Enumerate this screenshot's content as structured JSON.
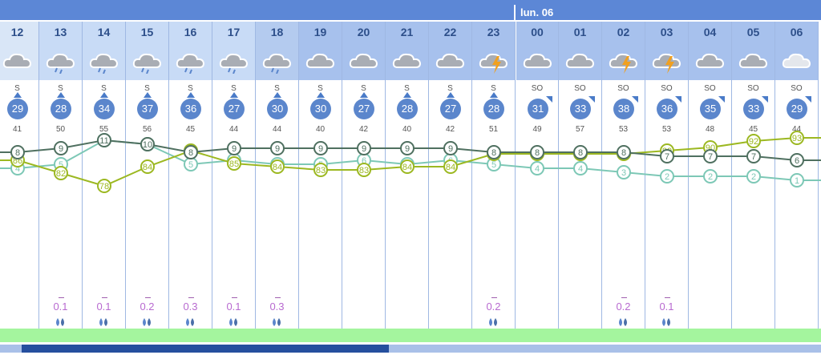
{
  "day_label": "lun. 06",
  "hours": [
    "12",
    "13",
    "14",
    "15",
    "16",
    "17",
    "18",
    "19",
    "20",
    "21",
    "22",
    "23",
    "00",
    "01",
    "02",
    "03",
    "04",
    "05",
    "06"
  ],
  "icons": [
    "cloud",
    "rain-cloud",
    "rain-cloud",
    "rain-cloud",
    "rain-cloud",
    "rain-cloud",
    "rain-cloud",
    "cloud",
    "cloud",
    "cloud",
    "cloud",
    "storm-cloud",
    "cloud",
    "cloud",
    "storm-cloud",
    "storm-cloud",
    "cloud",
    "cloud",
    "light-cloud"
  ],
  "wind_dir": [
    "S",
    "S",
    "S",
    "S",
    "S",
    "S",
    "S",
    "S",
    "S",
    "S",
    "S",
    "S",
    "SO",
    "SO",
    "SO",
    "SO",
    "SO",
    "SO",
    "SO"
  ],
  "wind_speed": [
    "29",
    "28",
    "34",
    "37",
    "36",
    "27",
    "30",
    "30",
    "27",
    "28",
    "27",
    "28",
    "31",
    "33",
    "38",
    "36",
    "35",
    "33",
    "29"
  ],
  "gusts": [
    "41",
    "50",
    "55",
    "56",
    "45",
    "44",
    "44",
    "40",
    "42",
    "40",
    "42",
    "51",
    "49",
    "57",
    "53",
    "53",
    "48",
    "45",
    "44"
  ],
  "rain": [
    "",
    "0.1",
    "0.1",
    "0.2",
    "0.3",
    "0.1",
    "0.3",
    "",
    "",
    "",
    "",
    "0.2",
    "",
    "",
    "0.2",
    "0.1",
    "",
    "",
    ""
  ],
  "series": {
    "temperature": [
      8,
      9,
      11,
      10,
      8,
      9,
      9,
      9,
      9,
      9,
      9,
      8,
      8,
      8,
      8,
      7,
      7,
      7,
      6
    ],
    "humidity": [
      86,
      82,
      78,
      84,
      89,
      85,
      84,
      83,
      83,
      84,
      84,
      88,
      88,
      88,
      88,
      89,
      90,
      92,
      93
    ],
    "dew_point": [
      4,
      5,
      11,
      10,
      5,
      6,
      5,
      5,
      6,
      5,
      6,
      5,
      4,
      4,
      3,
      2,
      2,
      2,
      1
    ]
  },
  "colors": {
    "header": "#5c87d6",
    "temperature": "#4f7060",
    "humidity": "#9cb821",
    "dew_point": "#7dc8b6",
    "wind": "#5b86cc",
    "rain": "#b86ad0",
    "band": "#a4f59e"
  }
}
